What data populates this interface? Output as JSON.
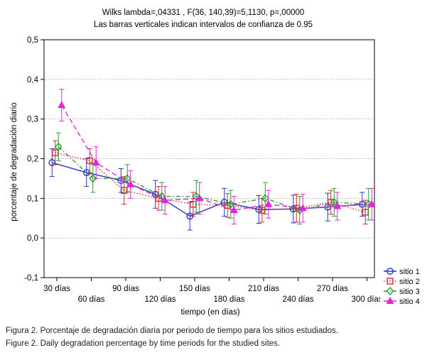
{
  "chart_data": {
    "type": "line",
    "title": "Wilks lambda=,04331 , F(36, 140,39)=5,1130, p=,00000",
    "subtitle": "Las barras verticales indican intervalos de confianza de 0.95",
    "xlabel": "tiempo (en días)",
    "ylabel": "porcentaje de degradación diario",
    "categories": [
      "30 días",
      "60 días",
      "90 días",
      "120 días",
      "150 días",
      "180 días",
      "210 días",
      "240 días",
      "270 días",
      "300 días"
    ],
    "y_ticks": [
      "-0,1",
      "0,0",
      "0,1",
      "0,2",
      "0,3",
      "0,4",
      "0,5"
    ],
    "y_tick_values": [
      -0.1,
      0.0,
      0.1,
      0.2,
      0.3,
      0.4,
      0.5
    ],
    "ylim": [
      -0.1,
      0.5
    ],
    "legend_position": "bottom-right",
    "series": [
      {
        "name": "sitio 1",
        "color": "#2b35c0",
        "marker": "circle",
        "dash": "solid",
        "values": [
          0.19,
          0.165,
          0.145,
          0.11,
          0.055,
          0.09,
          0.072,
          0.073,
          0.078,
          0.085
        ],
        "ci": [
          0.035,
          0.035,
          0.03,
          0.035,
          0.035,
          0.035,
          0.035,
          0.035,
          0.035,
          0.03
        ]
      },
      {
        "name": "sitio 2",
        "color": "#d42c2c",
        "marker": "square",
        "dash": "dot",
        "values": [
          0.215,
          0.195,
          0.12,
          0.1,
          0.085,
          0.082,
          0.07,
          0.075,
          0.09,
          0.065
        ],
        "ci": [
          0.03,
          0.03,
          0.035,
          0.03,
          0.03,
          0.03,
          0.03,
          0.035,
          0.03,
          0.03
        ]
      },
      {
        "name": "sitio 3",
        "color": "#2f9e34",
        "marker": "diamond",
        "dash": "dashdot",
        "values": [
          0.23,
          0.15,
          0.15,
          0.105,
          0.105,
          0.085,
          0.1,
          0.07,
          0.09,
          0.085
        ],
        "ci": [
          0.035,
          0.035,
          0.035,
          0.035,
          0.04,
          0.035,
          0.04,
          0.035,
          0.035,
          0.04
        ]
      },
      {
        "name": "sitio 4",
        "color": "#e026d8",
        "marker": "triangle",
        "dash": "dash",
        "values": [
          0.335,
          0.19,
          0.135,
          0.095,
          0.1,
          0.07,
          0.085,
          0.075,
          0.08,
          0.085
        ],
        "ci": [
          0.04,
          0.04,
          0.035,
          0.035,
          0.04,
          0.035,
          0.035,
          0.035,
          0.035,
          0.04
        ]
      }
    ]
  },
  "captions": {
    "es": "Figura 2. Porcentaje de degradación diaria por periodo de tiempo para los sitios estudiados.",
    "en": "Figure 2. Daily degradation percentage by time periods for the studied sites."
  }
}
